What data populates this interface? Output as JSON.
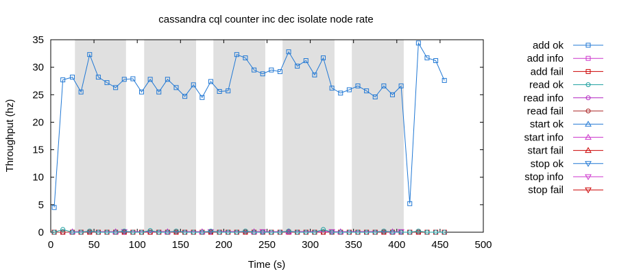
{
  "chart_data": {
    "type": "line",
    "title": "cassandra cql counter inc dec isolate node rate",
    "xlabel": "Time (s)",
    "ylabel": "Throughput (hz)",
    "xlim": [
      0,
      500
    ],
    "ylim": [
      0,
      35
    ],
    "x_ticks": [
      0,
      50,
      100,
      150,
      200,
      250,
      300,
      350,
      400,
      450,
      500
    ],
    "y_ticks": [
      0,
      5,
      10,
      15,
      20,
      25,
      30,
      35
    ],
    "legend_position": "right",
    "shaded_intervals": [
      [
        28,
        87
      ],
      [
        108,
        168
      ],
      [
        188,
        248
      ],
      [
        268,
        328
      ],
      [
        348,
        408
      ]
    ],
    "series": [
      {
        "name": "add ok",
        "color": "#1f77d4",
        "marker": "square",
        "x": [
          4,
          14,
          25,
          35,
          45,
          55,
          65,
          75,
          85,
          95,
          105,
          115,
          125,
          135,
          145,
          155,
          165,
          175,
          185,
          195,
          205,
          215,
          225,
          235,
          245,
          255,
          265,
          275,
          285,
          295,
          305,
          315,
          325,
          335,
          345,
          355,
          365,
          375,
          385,
          395,
          405,
          415,
          425,
          435,
          445,
          455
        ],
        "y": [
          4.5,
          27.7,
          28.2,
          25.5,
          32.3,
          28.2,
          27.2,
          26.3,
          27.8,
          27.9,
          25.5,
          27.8,
          25.5,
          27.8,
          26.3,
          24.7,
          26.8,
          24.5,
          27.4,
          25.6,
          25.7,
          32.3,
          31.7,
          29.5,
          28.8,
          29.5,
          29.2,
          32.8,
          30.2,
          31.2,
          28.6,
          31.7,
          26.2,
          25.3,
          25.9,
          26.6,
          25.7,
          24.6,
          26.6,
          25.0,
          26.6,
          5.2,
          34.4,
          31.7,
          31.2,
          27.6
        ]
      },
      {
        "name": "add info",
        "color": "#cc33cc",
        "marker": "square",
        "x": [
          4,
          14,
          25,
          35,
          45,
          55,
          65,
          75,
          85,
          95,
          105,
          115,
          125,
          135,
          145,
          155,
          165,
          175,
          185,
          195,
          205,
          215,
          225,
          235,
          245,
          255,
          265,
          275,
          285,
          295,
          305,
          315,
          325,
          335,
          345,
          355,
          365,
          375,
          385,
          395,
          405,
          415,
          425,
          435,
          445,
          455
        ],
        "y": [
          0,
          0,
          0,
          0,
          0,
          0,
          0,
          0,
          0,
          0,
          0,
          0,
          0,
          0,
          0,
          0,
          0,
          0,
          0,
          0,
          0,
          0,
          0,
          0,
          0,
          0,
          0,
          0,
          0,
          0,
          0,
          0,
          0,
          0,
          0,
          0,
          0,
          0,
          0,
          0,
          0,
          0,
          0,
          0,
          0,
          0
        ]
      },
      {
        "name": "add fail",
        "color": "#cc0000",
        "marker": "square",
        "x": [
          4,
          14,
          25,
          35,
          45,
          55,
          65,
          75,
          85,
          95,
          105,
          115,
          125,
          135,
          145,
          155,
          165,
          175,
          185,
          195,
          205,
          215,
          225,
          235,
          245,
          255,
          265,
          275,
          285,
          295,
          305,
          315,
          325,
          335,
          345,
          355,
          365,
          375,
          385,
          395,
          405,
          415,
          425,
          435,
          445,
          455
        ],
        "y": [
          0,
          0,
          0,
          0,
          0,
          0,
          0,
          0,
          0,
          0,
          0,
          0,
          0,
          0,
          0,
          0,
          0,
          0,
          0,
          0,
          0,
          0,
          0,
          0,
          0,
          0,
          0,
          0,
          0,
          0,
          0,
          0,
          0,
          0,
          0,
          0,
          0,
          0,
          0,
          0,
          0,
          0,
          0,
          0,
          0,
          0
        ]
      },
      {
        "name": "read ok",
        "color": "#1a9e9e",
        "marker": "circle",
        "x": [
          4,
          14,
          25,
          35,
          45,
          55,
          65,
          75,
          85,
          95,
          105,
          115,
          125,
          135,
          145,
          155,
          165,
          175,
          185,
          195,
          205,
          215,
          225,
          235,
          245,
          255,
          265,
          275,
          285,
          295,
          305,
          315,
          325,
          335,
          345,
          355,
          365,
          375,
          385,
          395,
          405,
          415,
          425,
          435,
          445,
          455
        ],
        "y": [
          0,
          0.5,
          0,
          0,
          0.2,
          0,
          0,
          0,
          0.2,
          0,
          0,
          0.3,
          0,
          0,
          0.2,
          0,
          0,
          0,
          0.2,
          0,
          0,
          0,
          0.2,
          0,
          0,
          0,
          0,
          0.2,
          0,
          0,
          0,
          0.5,
          0,
          0,
          0,
          0,
          0,
          0,
          0.2,
          0,
          0,
          0,
          0.2,
          0,
          0,
          0
        ]
      },
      {
        "name": "read info",
        "color": "#b020c0",
        "marker": "circle",
        "x": [
          4,
          14,
          25,
          35,
          45,
          55,
          65,
          75,
          85,
          95,
          105,
          115,
          125,
          135,
          145,
          155,
          165,
          175,
          185,
          195,
          205,
          215,
          225,
          235,
          245,
          255,
          265,
          275,
          285,
          295,
          305,
          315,
          325,
          335,
          345,
          355,
          365,
          375,
          385,
          395,
          405,
          415,
          425,
          435,
          445,
          455
        ],
        "y": [
          0,
          0,
          0,
          0,
          0,
          0,
          0,
          0,
          0,
          0,
          0,
          0,
          0,
          0,
          0,
          0,
          0,
          0,
          0,
          0,
          0,
          0,
          0,
          0,
          0,
          0,
          0,
          0,
          0,
          0,
          0,
          0,
          0,
          0,
          0,
          0,
          0,
          0,
          0,
          0,
          0,
          0,
          0,
          0,
          0,
          0
        ]
      },
      {
        "name": "read fail",
        "color": "#aa2222",
        "marker": "circle",
        "x": [
          4,
          14,
          25,
          35,
          45,
          55,
          65,
          75,
          85,
          95,
          105,
          115,
          125,
          135,
          145,
          155,
          165,
          175,
          185,
          195,
          205,
          215,
          225,
          235,
          245,
          255,
          265,
          275,
          285,
          295,
          305,
          315,
          325,
          335,
          345,
          355,
          365,
          375,
          385,
          395,
          405,
          415,
          425,
          435,
          445,
          455
        ],
        "y": [
          0,
          0,
          0,
          0,
          0,
          0,
          0,
          0,
          0,
          0,
          0,
          0,
          0,
          0,
          0,
          0,
          0,
          0,
          0,
          0,
          0,
          0,
          0,
          0,
          0,
          0,
          0,
          0,
          0,
          0,
          0,
          0,
          0,
          0,
          0,
          0,
          0,
          0,
          0,
          0,
          0,
          0,
          0,
          0,
          0,
          0
        ]
      },
      {
        "name": "start ok",
        "color": "#1f77d4",
        "marker": "triangle-up",
        "x": [],
        "y": []
      },
      {
        "name": "start info",
        "color": "#cc33cc",
        "marker": "triangle-up",
        "x": [
          25,
          75,
          135,
          175,
          235,
          275,
          335,
          395
        ],
        "y": [
          0.1,
          0.1,
          0.1,
          0.1,
          0.1,
          0.1,
          0.1,
          0.1
        ]
      },
      {
        "name": "start fail",
        "color": "#cc0000",
        "marker": "triangle-up",
        "x": [],
        "y": []
      },
      {
        "name": "stop ok",
        "color": "#1f77d4",
        "marker": "triangle-down",
        "x": [],
        "y": []
      },
      {
        "name": "stop info",
        "color": "#cc33cc",
        "marker": "triangle-down",
        "x": [
          85,
          185,
          245,
          325,
          405
        ],
        "y": [
          0.1,
          0.1,
          0.1,
          0.1,
          0.1
        ]
      },
      {
        "name": "stop fail",
        "color": "#cc0000",
        "marker": "triangle-down",
        "x": [],
        "y": []
      }
    ]
  }
}
